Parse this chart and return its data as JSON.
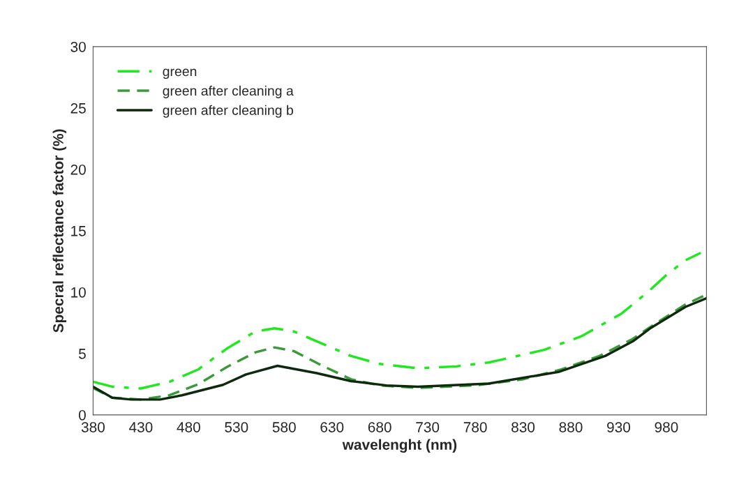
{
  "chart_data": {
    "type": "line",
    "xlabel": "wavelenght (nm)",
    "ylabel": "Specral reflectance factor (%)",
    "xlim": [
      380,
      1022
    ],
    "xticks": [
      380,
      430,
      480,
      530,
      580,
      630,
      680,
      730,
      780,
      830,
      880,
      930,
      980
    ],
    "ylim": [
      0,
      30
    ],
    "yticks": [
      0,
      5,
      10,
      15,
      20,
      25,
      30
    ],
    "grid": false,
    "legend": "top left",
    "series": [
      {
        "name": "green",
        "color": "#1fe81f",
        "line_style": "dashdot",
        "x": [
          380,
          400,
          430,
          460,
          490,
          520,
          550,
          570,
          590,
          620,
          650,
          680,
          720,
          760,
          794,
          830,
          852,
          891,
          933,
          962,
          980,
          1000,
          1016
        ],
        "values": [
          2.7,
          2.3,
          2.15,
          2.7,
          3.7,
          5.4,
          6.8,
          7.05,
          6.8,
          5.8,
          4.8,
          4.15,
          3.8,
          3.95,
          4.27,
          4.9,
          5.3,
          6.4,
          8.25,
          10.1,
          11.4,
          12.6,
          13.2
        ]
      },
      {
        "name": "green after cleaning a",
        "color": "#3a9a3a",
        "line_style": "dashed",
        "x": [
          380,
          400,
          430,
          460,
          490,
          520,
          550,
          570,
          590,
          620,
          650,
          680,
          720,
          780,
          830,
          870,
          910,
          945,
          964,
          1000,
          1022
        ],
        "values": [
          2.2,
          1.4,
          1.25,
          1.6,
          2.5,
          3.9,
          5.1,
          5.5,
          5.2,
          4.0,
          2.9,
          2.4,
          2.2,
          2.4,
          2.9,
          3.7,
          4.8,
          6.2,
          7.2,
          9.0,
          9.8
        ]
      },
      {
        "name": "green after cleaning b",
        "color": "#0d2a0d",
        "line_style": "solid",
        "x": [
          380,
          400,
          420,
          450,
          473,
          516,
          540,
          573,
          614,
          650,
          687,
          720,
          794,
          867,
          916,
          945,
          964,
          1000,
          1022
        ],
        "values": [
          2.3,
          1.4,
          1.25,
          1.25,
          1.6,
          2.45,
          3.3,
          4.0,
          3.4,
          2.75,
          2.4,
          2.3,
          2.55,
          3.5,
          4.8,
          6.0,
          7.1,
          8.8,
          9.5
        ]
      }
    ]
  }
}
